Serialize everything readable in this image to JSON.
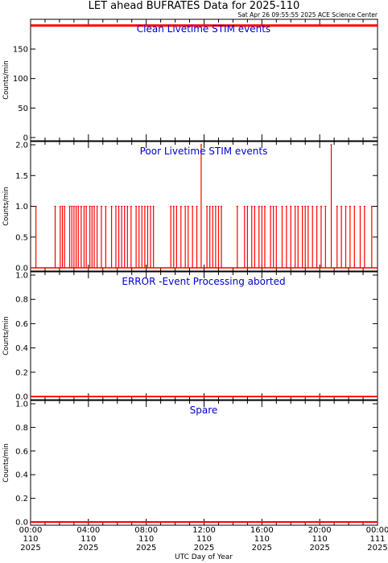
{
  "title": "LET ahead BUFRATES Data for 2025-110",
  "timestamp": "Sat Apr 26 09:55:55 2025 ACE Science Center",
  "xlabel": "UTC Day of Year",
  "colors": {
    "data": "#ff0000",
    "panel_title": "#0000cc",
    "axis": "#000000"
  },
  "x_ticks": [
    {
      "time": "00:00",
      "doy": "110",
      "year": "2025"
    },
    {
      "time": "04:00",
      "doy": "110",
      "year": "2025"
    },
    {
      "time": "08:00",
      "doy": "110",
      "year": "2025"
    },
    {
      "time": "12:00",
      "doy": "110",
      "year": "2025"
    },
    {
      "time": "16:00",
      "doy": "110",
      "year": "2025"
    },
    {
      "time": "20:00",
      "doy": "110",
      "year": "2025"
    },
    {
      "time": "00:00",
      "doy": "111",
      "year": "2025"
    }
  ],
  "chart_data": [
    {
      "type": "line",
      "title": "Clean Livetime STIM events",
      "ylabel": "Counts/min",
      "xlim": [
        0,
        24
      ],
      "ylim": [
        0,
        195
      ],
      "yticks": [
        "0",
        "50",
        "100",
        "150"
      ],
      "series": [
        {
          "x": [
            0,
            24
          ],
          "values": [
            190,
            190
          ]
        }
      ]
    },
    {
      "type": "line",
      "title": "Poor Livetime STIM events",
      "ylabel": "Counts/min",
      "xlim": [
        0,
        24
      ],
      "ylim": [
        0,
        2
      ],
      "yticks": [
        "0.0",
        "0.5",
        "1.0",
        "1.5",
        "2.0"
      ],
      "spikes": [
        {
          "x": 0.37,
          "y": 1
        },
        {
          "x": 1.7,
          "y": 1
        },
        {
          "x": 2.05,
          "y": 1
        },
        {
          "x": 2.2,
          "y": 1
        },
        {
          "x": 2.35,
          "y": 1
        },
        {
          "x": 2.7,
          "y": 1
        },
        {
          "x": 2.85,
          "y": 1
        },
        {
          "x": 3.0,
          "y": 1
        },
        {
          "x": 3.15,
          "y": 1
        },
        {
          "x": 3.3,
          "y": 1
        },
        {
          "x": 3.5,
          "y": 1
        },
        {
          "x": 3.7,
          "y": 1
        },
        {
          "x": 3.85,
          "y": 1
        },
        {
          "x": 4.1,
          "y": 1
        },
        {
          "x": 4.25,
          "y": 1
        },
        {
          "x": 4.4,
          "y": 1
        },
        {
          "x": 4.6,
          "y": 1
        },
        {
          "x": 4.9,
          "y": 1
        },
        {
          "x": 5.2,
          "y": 1
        },
        {
          "x": 5.6,
          "y": 1
        },
        {
          "x": 5.9,
          "y": 1
        },
        {
          "x": 6.1,
          "y": 1
        },
        {
          "x": 6.3,
          "y": 1
        },
        {
          "x": 6.5,
          "y": 1
        },
        {
          "x": 6.7,
          "y": 1
        },
        {
          "x": 6.95,
          "y": 1
        },
        {
          "x": 7.3,
          "y": 1
        },
        {
          "x": 7.5,
          "y": 1
        },
        {
          "x": 7.7,
          "y": 1
        },
        {
          "x": 7.9,
          "y": 1
        },
        {
          "x": 8.1,
          "y": 1
        },
        {
          "x": 8.3,
          "y": 1
        },
        {
          "x": 8.5,
          "y": 1
        },
        {
          "x": 9.7,
          "y": 1
        },
        {
          "x": 9.9,
          "y": 1
        },
        {
          "x": 10.1,
          "y": 1
        },
        {
          "x": 10.4,
          "y": 1
        },
        {
          "x": 10.7,
          "y": 1
        },
        {
          "x": 10.9,
          "y": 1
        },
        {
          "x": 11.2,
          "y": 1
        },
        {
          "x": 11.5,
          "y": 1
        },
        {
          "x": 11.8,
          "y": 2
        },
        {
          "x": 12.2,
          "y": 1
        },
        {
          "x": 12.4,
          "y": 1
        },
        {
          "x": 12.6,
          "y": 1
        },
        {
          "x": 12.8,
          "y": 1
        },
        {
          "x": 13.0,
          "y": 1
        },
        {
          "x": 13.2,
          "y": 1
        },
        {
          "x": 14.3,
          "y": 1
        },
        {
          "x": 14.8,
          "y": 1
        },
        {
          "x": 15.0,
          "y": 1
        },
        {
          "x": 15.3,
          "y": 1
        },
        {
          "x": 15.5,
          "y": 1
        },
        {
          "x": 15.8,
          "y": 1
        },
        {
          "x": 16.0,
          "y": 1
        },
        {
          "x": 16.2,
          "y": 1
        },
        {
          "x": 16.6,
          "y": 1
        },
        {
          "x": 16.8,
          "y": 1
        },
        {
          "x": 17.0,
          "y": 1
        },
        {
          "x": 17.4,
          "y": 1
        },
        {
          "x": 17.7,
          "y": 1
        },
        {
          "x": 18.0,
          "y": 1
        },
        {
          "x": 18.3,
          "y": 1
        },
        {
          "x": 18.5,
          "y": 1
        },
        {
          "x": 18.8,
          "y": 1
        },
        {
          "x": 19.0,
          "y": 1
        },
        {
          "x": 19.2,
          "y": 1
        },
        {
          "x": 19.5,
          "y": 1
        },
        {
          "x": 19.8,
          "y": 1
        },
        {
          "x": 20.1,
          "y": 1
        },
        {
          "x": 20.4,
          "y": 1
        },
        {
          "x": 20.8,
          "y": 2
        },
        {
          "x": 21.2,
          "y": 1
        },
        {
          "x": 21.5,
          "y": 1
        },
        {
          "x": 21.8,
          "y": 1
        },
        {
          "x": 22.1,
          "y": 1
        },
        {
          "x": 22.4,
          "y": 1
        },
        {
          "x": 22.8,
          "y": 1
        },
        {
          "x": 23.1,
          "y": 1
        },
        {
          "x": 23.6,
          "y": 1
        }
      ]
    },
    {
      "type": "line",
      "title": "ERROR -Event Processing aborted",
      "ylabel": "Counts/min",
      "xlim": [
        0,
        24
      ],
      "ylim": [
        0,
        1
      ],
      "yticks": [
        "0.0",
        "0.2",
        "0.4",
        "0.6",
        "0.8",
        "1.0"
      ],
      "series": [
        {
          "x": [
            0,
            24
          ],
          "values": [
            0,
            0
          ]
        }
      ]
    },
    {
      "type": "line",
      "title": "Spare",
      "ylabel": "Counts/min",
      "xlim": [
        0,
        24
      ],
      "ylim": [
        0,
        1
      ],
      "yticks": [
        "0.0",
        "0.2",
        "0.4",
        "0.6",
        "0.8",
        "1.0"
      ],
      "series": [
        {
          "x": [
            0,
            24
          ],
          "values": [
            0,
            0
          ]
        }
      ]
    }
  ]
}
